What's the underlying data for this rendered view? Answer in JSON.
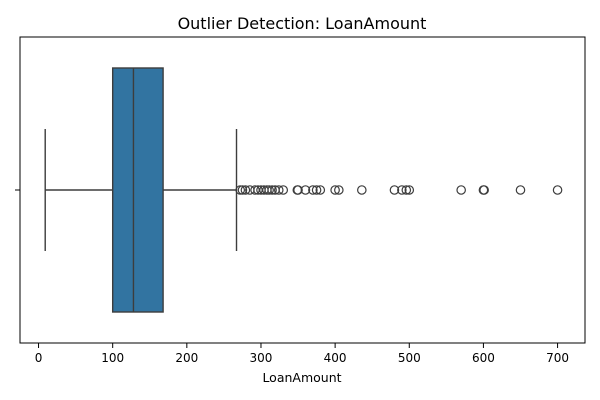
{
  "chart_data": {
    "type": "boxplot",
    "orientation": "horizontal",
    "title": "Outlier Detection: LoanAmount",
    "xlabel": "LoanAmount",
    "ylabel": "",
    "xlim": [
      -25,
      737
    ],
    "xticks": [
      0,
      100,
      200,
      300,
      400,
      500,
      600,
      700
    ],
    "grid": false,
    "legend": "none",
    "box": {
      "whisker_low": 9,
      "q1": 100,
      "median": 128,
      "q3": 168,
      "whisker_high": 267
    },
    "outliers": [
      272,
      275,
      279,
      285,
      292,
      296,
      300,
      304,
      308,
      311,
      315,
      319,
      324,
      330,
      349,
      350,
      360,
      370,
      375,
      380,
      400,
      405,
      436,
      480,
      490,
      496,
      500,
      570,
      600,
      601,
      650,
      700
    ],
    "colors": {
      "box_fill": "#3274a1",
      "line": "#3d3d3d",
      "outlier_edge": "#3d3d3d"
    }
  }
}
